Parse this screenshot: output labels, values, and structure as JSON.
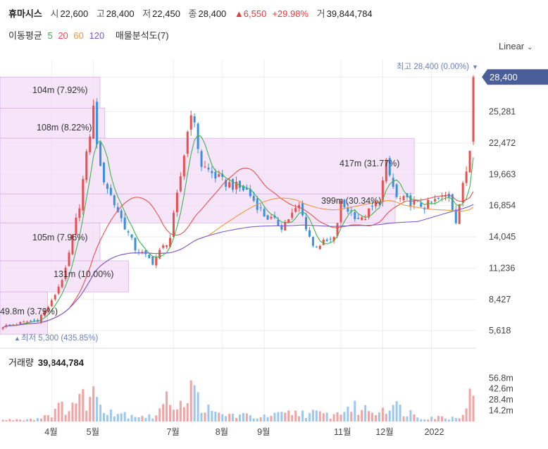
{
  "header": {
    "name": "휴마시스",
    "open_label": "시",
    "open": "22,600",
    "high_label": "고",
    "high": "28,400",
    "low_label": "저",
    "low": "22,450",
    "close_label": "종",
    "close": "28,400",
    "change": "▲6,550",
    "change_pct": "+29.98%",
    "volume_label": "거",
    "volume": "39,844,784"
  },
  "legend": {
    "ma_label": "이동평균",
    "ma": [
      {
        "name": "5",
        "color": "#3cb44b"
      },
      {
        "name": "20",
        "color": "#e8504f"
      },
      {
        "name": "60",
        "color": "#f0953a"
      },
      {
        "name": "120",
        "color": "#7b5cd6"
      }
    ],
    "vp_label": "매물분석도(7)"
  },
  "scale_mode": "Linear",
  "colors": {
    "up": "#e8504f",
    "down": "#3a8fe0",
    "profile": "#f3dcf7",
    "profile_edge": "#d9b3e6",
    "last_tag": "#4a5e9a"
  },
  "chart_data": {
    "type": "candlestick",
    "y_ticks": [
      "28,400",
      "25,281",
      "22,472",
      "19,663",
      "16,854",
      "14,045",
      "11,236",
      "8,427",
      "5,618"
    ],
    "y_tick_values": [
      28400,
      25281,
      22472,
      19663,
      16854,
      14045,
      11236,
      8427,
      5618
    ],
    "ylim": [
      4300,
      30000
    ],
    "x_ticks": [
      {
        "label": "4월",
        "idx": 14
      },
      {
        "label": "5월",
        "idx": 26
      },
      {
        "label": "7월",
        "idx": 49
      },
      {
        "label": "8월",
        "idx": 63
      },
      {
        "label": "9월",
        "idx": 75
      },
      {
        "label": "11월",
        "idx": 97
      },
      {
        "label": "12월",
        "idx": 109
      },
      {
        "label": "2022",
        "idx": 123
      }
    ],
    "n_days": 135,
    "last_price_tag": "28,400",
    "max_marker": "최고 28,400 (0.00%)",
    "min_marker": "최저 5,300 (435.85%)",
    "volume_label": "거래량",
    "volume_value": "39,844,784",
    "volume_ticks": [
      "56.8m",
      "42.6m",
      "28.4m",
      "14.2m"
    ],
    "volume_tick_values": [
      56.8,
      42.6,
      28.4,
      14.2
    ],
    "volume_max": 70,
    "volume_profile": [
      {
        "label": "104m (7.92%)",
        "low": 25600,
        "high": 28400,
        "width": 0.21
      },
      {
        "label": "108m (8.22%)",
        "low": 22900,
        "high": 25600,
        "width": 0.22
      },
      {
        "label": "417m (31.77%)",
        "low": 17900,
        "high": 22900,
        "width": 0.87
      },
      {
        "label": "399m (30.34%)",
        "low": 15300,
        "high": 17900,
        "width": 0.83
      },
      {
        "label": "105m (7.96%)",
        "low": 11900,
        "high": 15300,
        "width": 0.21
      },
      {
        "label": "131m (10.00%)",
        "low": 9100,
        "high": 11900,
        "width": 0.27
      },
      {
        "label": "49.8m (3.79%)",
        "low": 5300,
        "high": 9100,
        "width": 0.1
      }
    ],
    "anchors": [
      [
        0,
        6000
      ],
      [
        10,
        6600
      ],
      [
        14,
        8200
      ],
      [
        18,
        11000
      ],
      [
        22,
        17000
      ],
      [
        26,
        25500
      ],
      [
        28,
        20000
      ],
      [
        32,
        17000
      ],
      [
        38,
        13000
      ],
      [
        43,
        11800
      ],
      [
        48,
        14000
      ],
      [
        51,
        19500
      ],
      [
        54,
        25500
      ],
      [
        57,
        20500
      ],
      [
        63,
        19000
      ],
      [
        70,
        18200
      ],
      [
        75,
        16000
      ],
      [
        80,
        15000
      ],
      [
        85,
        16800
      ],
      [
        89,
        13200
      ],
      [
        95,
        13800
      ],
      [
        97,
        17000
      ],
      [
        103,
        15500
      ],
      [
        108,
        17400
      ],
      [
        110,
        20500
      ],
      [
        113,
        17500
      ],
      [
        121,
        16800
      ],
      [
        128,
        17800
      ],
      [
        130,
        15600
      ],
      [
        133,
        20000
      ],
      [
        134,
        22000
      ],
      [
        135,
        28400
      ]
    ],
    "volume_anchors": [
      [
        0,
        2
      ],
      [
        10,
        4
      ],
      [
        17,
        18
      ],
      [
        22,
        28
      ],
      [
        26,
        35
      ],
      [
        32,
        12
      ],
      [
        43,
        6
      ],
      [
        48,
        30
      ],
      [
        51,
        25
      ],
      [
        54,
        40
      ],
      [
        60,
        10
      ],
      [
        75,
        6
      ],
      [
        85,
        12
      ],
      [
        95,
        8
      ],
      [
        99,
        18
      ],
      [
        108,
        14
      ],
      [
        110,
        24
      ],
      [
        120,
        6
      ],
      [
        130,
        5
      ],
      [
        133,
        20
      ],
      [
        135,
        40
      ]
    ]
  }
}
